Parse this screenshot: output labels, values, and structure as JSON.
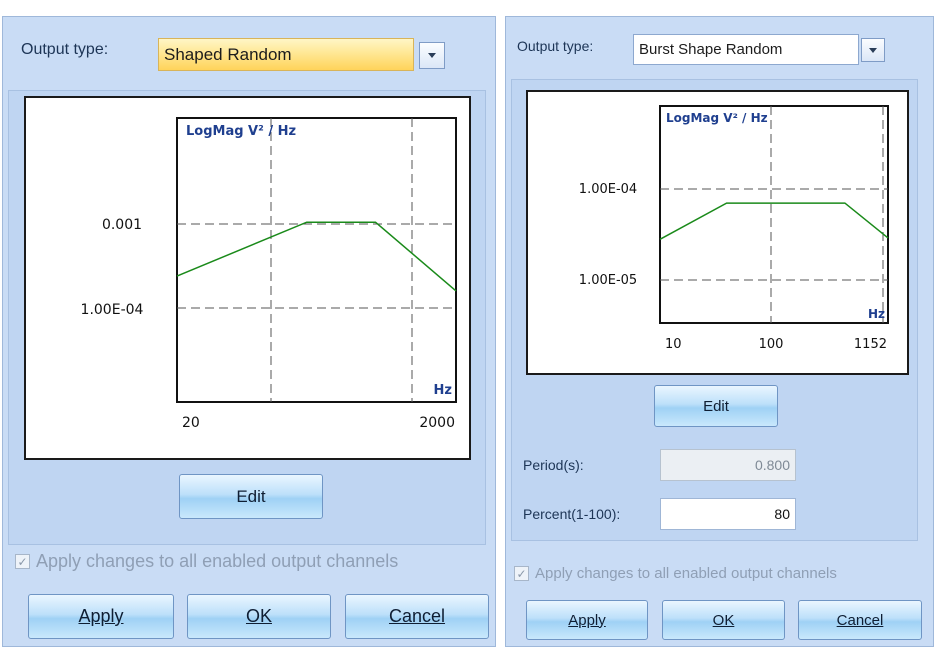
{
  "left_dialog": {
    "output_type_label": "Output type:",
    "output_type_value": "Shaped Random",
    "chart": {
      "title": "LogMag V² / Hz",
      "x_unit": "Hz",
      "x_ticks": [
        "20",
        "2000"
      ],
      "y_ticks": [
        "0.001",
        "1.00E-04"
      ],
      "profile": [
        {
          "x": 20,
          "y": 0.00024
        },
        {
          "x": 170,
          "y": 0.00105
        },
        {
          "x": 530,
          "y": 0.00105
        },
        {
          "x": 2000,
          "y": 0.00016
        }
      ]
    },
    "edit_label": "Edit",
    "apply_all_label": "Apply changes to all enabled output channels",
    "apply_all_checked": true,
    "buttons": {
      "apply": "Apply",
      "ok": "OK",
      "cancel": "Cancel"
    }
  },
  "right_dialog": {
    "output_type_label": "Output type:",
    "output_type_value": "Burst Shape Random",
    "chart": {
      "title": "LogMag V² / Hz",
      "x_unit": "Hz",
      "x_ticks": [
        "10",
        "100",
        "1152"
      ],
      "y_ticks": [
        "1.00E-04",
        "1.00E-05"
      ],
      "profile": [
        {
          "x": 10,
          "y": 2.8e-05
        },
        {
          "x": 40,
          "y": 7e-05
        },
        {
          "x": 470,
          "y": 7e-05
        },
        {
          "x": 1152,
          "y": 2.9e-05
        }
      ]
    },
    "edit_label": "Edit",
    "period_label": "Period(s):",
    "period_value": "0.800",
    "percent_label": "Percent(1-100):",
    "percent_value": "80",
    "apply_all_label": "Apply changes to all enabled output channels",
    "apply_all_checked": true,
    "buttons": {
      "apply": "Apply",
      "ok": "OK",
      "cancel": "Cancel"
    }
  },
  "colors": {
    "panel_bg": "#c9dcf5",
    "plot_line": "#1a8a1a",
    "axis_text": "#1f3f8f",
    "combo_highlight": "#ffe48a"
  }
}
